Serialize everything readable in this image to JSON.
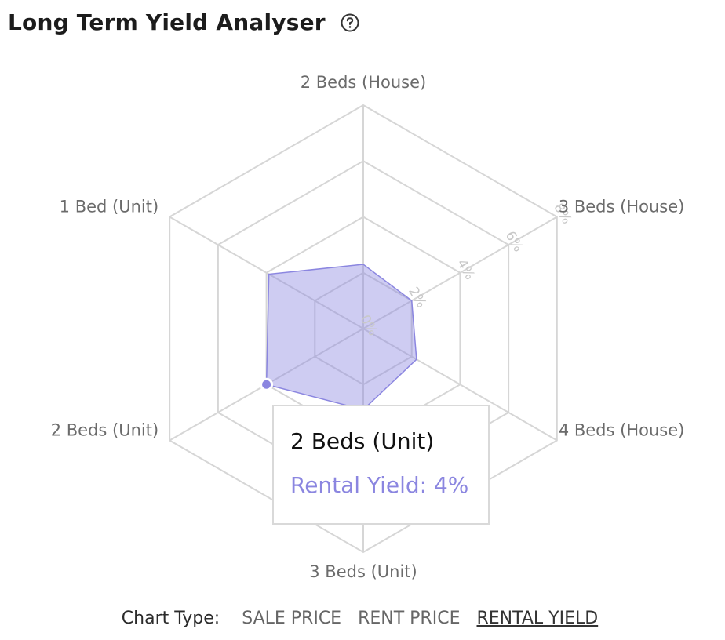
{
  "header": {
    "title": "Long Term Yield Analyser",
    "help_icon": "help-circle-icon"
  },
  "chart_data": {
    "type": "radar",
    "categories": [
      "2 Beds (House)",
      "3 Beds (House)",
      "4 Beds (House)",
      "3 Beds (Unit)",
      "2 Beds (Unit)",
      "1 Bed (Unit)"
    ],
    "series": [
      {
        "values": [
          2.3,
          2.0,
          2.2,
          2.9,
          4.0,
          3.9
        ],
        "color": "#8b86e0"
      }
    ],
    "radial_ticks": [
      "0%",
      "2%",
      "4%",
      "6%",
      "8%"
    ],
    "rlim": [
      0,
      8
    ],
    "grid": true
  },
  "tooltip": {
    "title": "2 Beds (Unit)",
    "value": "Rental Yield: 4%"
  },
  "chart_type": {
    "label": "Chart Type:",
    "options": [
      "SALE PRICE",
      "RENT PRICE",
      "RENTAL YIELD"
    ],
    "active": 2
  }
}
